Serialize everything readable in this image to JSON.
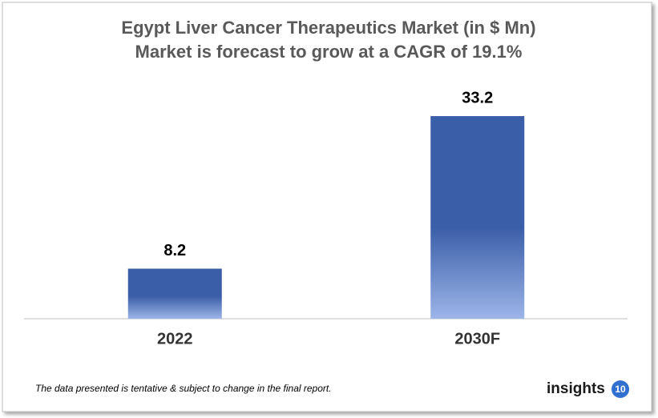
{
  "chart_data": {
    "type": "bar",
    "title": "Egypt Liver Cancer Therapeutics Market (in $ Mn)",
    "subtitle": "Market is forecast to grow at a CAGR of 19.1%",
    "categories": [
      "2022",
      "2030F"
    ],
    "values": [
      8.2,
      33.2
    ],
    "color": "#3a5ea8"
  },
  "footnote": "The data presented is tentative & subject to change in the final report.",
  "logo": {
    "text": "insights",
    "badge": "10"
  }
}
